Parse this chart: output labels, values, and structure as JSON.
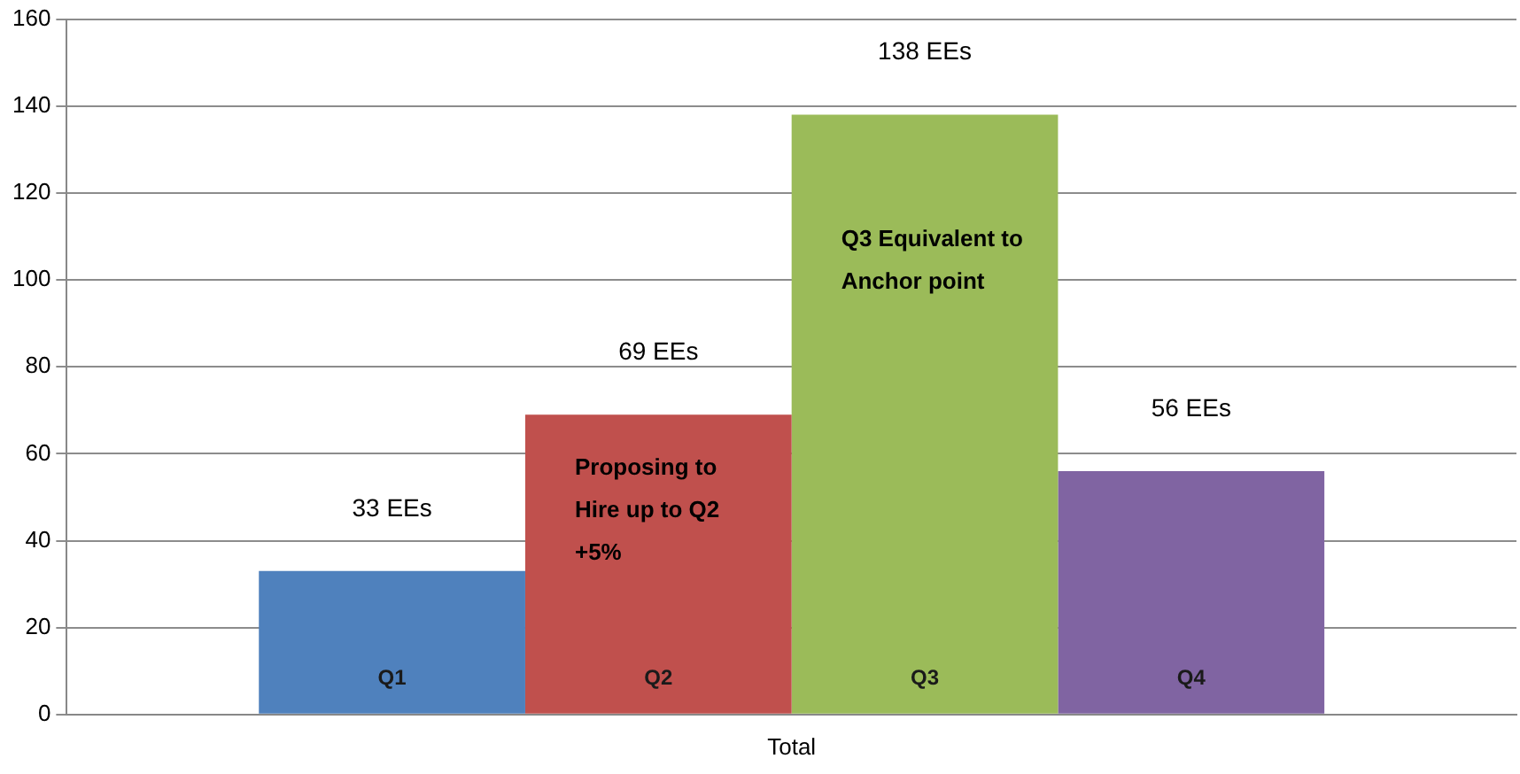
{
  "chart_data": {
    "type": "bar",
    "categories": [
      "Total"
    ],
    "series": [
      {
        "name": "Q1",
        "color": "#4f81bd",
        "values": [
          33
        ],
        "value_labels": [
          "33 EEs"
        ]
      },
      {
        "name": "Q2",
        "color": "#c0504d",
        "values": [
          69
        ],
        "value_labels": [
          "69 EEs"
        ]
      },
      {
        "name": "Q3",
        "color": "#9bbb59",
        "values": [
          138
        ],
        "value_labels": [
          "138 EEs"
        ]
      },
      {
        "name": "Q4",
        "color": "#8064a2",
        "values": [
          56
        ],
        "value_labels": [
          "56 EEs"
        ]
      }
    ],
    "annotations": [
      "Proposing to Hire up to Q2 +5%",
      "Q3 Equivalent to Anchor point"
    ],
    "ylim": [
      0,
      160
    ],
    "yticks": [
      0,
      20,
      40,
      60,
      80,
      100,
      120,
      140,
      160
    ],
    "grid": "y",
    "legend": false
  }
}
